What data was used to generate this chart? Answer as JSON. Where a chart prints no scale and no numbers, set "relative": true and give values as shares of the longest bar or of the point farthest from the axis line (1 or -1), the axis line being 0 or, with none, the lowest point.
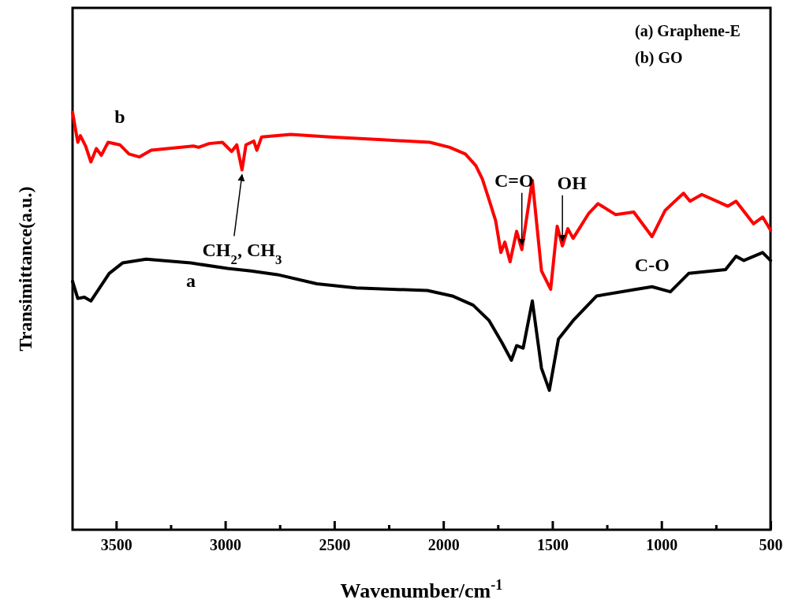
{
  "chart_data": {
    "type": "line",
    "relative": true,
    "xlabel": "Wavenumber/cm$^{-1}$",
    "ylabel": "Transimittance(a.u.)",
    "xlim": [
      3700,
      500
    ],
    "xticks": [
      3500,
      {
        "value": 3250,
        "label": null
      },
      3000,
      {
        "value": 2750,
        "label": null
      },
      2500,
      {
        "value": 2250,
        "label": null
      },
      2000,
      {
        "value": 1750,
        "label": null
      },
      1500,
      {
        "value": 1250,
        "label": null
      },
      1000,
      {
        "value": 750,
        "label": null
      },
      500
    ],
    "grid": false,
    "marker": "none",
    "line_style": "solid",
    "annotations": [
      "(a) Graphene-E",
      "(b) GO",
      {
        "text": "CH$_{2}$, CH$_{3}$",
        "x": 2923,
        "y": 0.862
      },
      {
        "text": "C=O",
        "x": 1640,
        "y": 0.671
      },
      {
        "text": "OH",
        "x": 1454,
        "y": 0.68
      },
      {
        "text": "C-O",
        "x": 1043,
        "y": 0.702
      }
    ],
    "series": [
      {
        "name": "a",
        "color": "#000000",
        "x": [
          3700,
          3676,
          3646,
          3616,
          3580,
          3532,
          3471,
          3363,
          3158,
          2989,
          2881,
          2760,
          2580,
          2399,
          2073,
          1959,
          1863,
          1790,
          1730,
          1688,
          1664,
          1634,
          1592,
          1550,
          1514,
          1472,
          1405,
          1297,
          1116,
          1043,
          959,
          875,
          706,
          658,
          622,
          536,
          500
        ],
        "values": [
          0.595,
          0.554,
          0.557,
          0.548,
          0.576,
          0.614,
          0.639,
          0.648,
          0.639,
          0.626,
          0.62,
          0.611,
          0.589,
          0.579,
          0.573,
          0.56,
          0.538,
          0.501,
          0.447,
          0.406,
          0.441,
          0.435,
          0.548,
          0.387,
          0.334,
          0.457,
          0.501,
          0.56,
          0.576,
          0.582,
          0.57,
          0.614,
          0.623,
          0.655,
          0.645,
          0.664,
          0.645
        ]
      },
      {
        "name": "b",
        "color": "#ff0000",
        "x": [
          3700,
          3676,
          3664,
          3640,
          3616,
          3591,
          3568,
          3537,
          3483,
          3441,
          3393,
          3339,
          3146,
          3122,
          3074,
          3013,
          2971,
          2947,
          2923,
          2905,
          2869,
          2855,
          2833,
          2700,
          2520,
          2279,
          2062,
          1971,
          1899,
          1851,
          1821,
          1790,
          1760,
          1736,
          1718,
          1694,
          1664,
          1640,
          1592,
          1550,
          1508,
          1478,
          1454,
          1429,
          1405,
          1333,
          1291,
          1211,
          1127,
          1043,
          983,
          899,
          869,
          815,
          695,
          658,
          578,
          536,
          500
        ],
        "values": [
          1.0,
          0.928,
          0.944,
          0.919,
          0.881,
          0.913,
          0.897,
          0.928,
          0.922,
          0.9,
          0.893,
          0.909,
          0.919,
          0.916,
          0.925,
          0.928,
          0.906,
          0.922,
          0.862,
          0.922,
          0.931,
          0.909,
          0.941,
          0.947,
          0.941,
          0.934,
          0.928,
          0.916,
          0.9,
          0.872,
          0.84,
          0.79,
          0.74,
          0.664,
          0.689,
          0.642,
          0.715,
          0.671,
          0.837,
          0.62,
          0.576,
          0.727,
          0.68,
          0.721,
          0.698,
          0.758,
          0.781,
          0.755,
          0.761,
          0.702,
          0.765,
          0.806,
          0.787,
          0.803,
          0.775,
          0.787,
          0.733,
          0.749,
          0.718
        ]
      }
    ]
  }
}
